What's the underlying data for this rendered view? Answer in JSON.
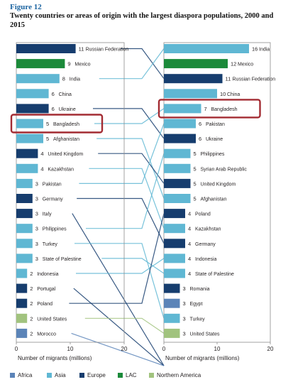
{
  "figure": {
    "label": "Figure 12",
    "title": "Twenty countries or areas of origin with the largest diaspora populations, 2000 and 2015"
  },
  "colors": {
    "Africa": "#5b84b8",
    "Asia": "#5fb7d3",
    "Europe": "#163d6e",
    "LAC": "#1b8a3a",
    "Northern America": "#a1c37e",
    "highlight": "#a32b32",
    "connector": "#1f4f7a"
  },
  "chart_data": [
    {
      "type": "bar",
      "orientation": "horizontal",
      "xlabel": "Number of migrants (millions)",
      "xlim": [
        0,
        20
      ],
      "xticks": [
        0,
        10,
        20
      ],
      "categories": [
        "Russian Federation",
        "Mexico",
        "India",
        "China",
        "Ukraine",
        "Bangladesh",
        "Afghanistan",
        "United Kingdom",
        "Kazakhstan",
        "Pakistan",
        "Germany",
        "Italy",
        "Philippines",
        "Turkey",
        "State of Palestine",
        "Indonesia",
        "Portugal",
        "Poland",
        "United States",
        "Morocco"
      ],
      "values": [
        11,
        9,
        8,
        6,
        6,
        5,
        5,
        4,
        4,
        3,
        3,
        3,
        3,
        3,
        3,
        2,
        2,
        2,
        2,
        2
      ],
      "regions": [
        "Europe",
        "LAC",
        "Asia",
        "Asia",
        "Europe",
        "Asia",
        "Asia",
        "Europe",
        "Asia",
        "Asia",
        "Europe",
        "Europe",
        "Asia",
        "Asia",
        "Asia",
        "Asia",
        "Europe",
        "Europe",
        "Northern America",
        "Africa"
      ],
      "highlighted": "Bangladesh"
    },
    {
      "type": "bar",
      "orientation": "horizontal",
      "xlabel": "Number of migrants (millions)",
      "xlim": [
        0,
        20
      ],
      "xticks": [
        0,
        10,
        20
      ],
      "categories": [
        "India",
        "Mexico",
        "Russian Federation",
        "China",
        "Bangladesh",
        "Pakistan",
        "Ukraine",
        "Philippines",
        "Syrian Arab Republic",
        "United Kingdom",
        "Afghanistan",
        "Poland",
        "Kazakhstan",
        "Germany",
        "Indonesia",
        "State of Palestine",
        "Romania",
        "Egypt",
        "Turkey",
        "United States"
      ],
      "values": [
        16,
        12,
        11,
        10,
        7,
        6,
        6,
        5,
        5,
        5,
        5,
        4,
        4,
        4,
        4,
        4,
        3,
        3,
        3,
        3
      ],
      "regions": [
        "Asia",
        "LAC",
        "Europe",
        "Asia",
        "Asia",
        "Asia",
        "Europe",
        "Asia",
        "Asia",
        "Europe",
        "Asia",
        "Europe",
        "Asia",
        "Europe",
        "Asia",
        "Asia",
        "Europe",
        "Africa",
        "Asia",
        "Northern America"
      ],
      "highlighted": "Bangladesh"
    }
  ],
  "legend": [
    "Africa",
    "Asia",
    "Europe",
    "LAC",
    "Northern America"
  ]
}
